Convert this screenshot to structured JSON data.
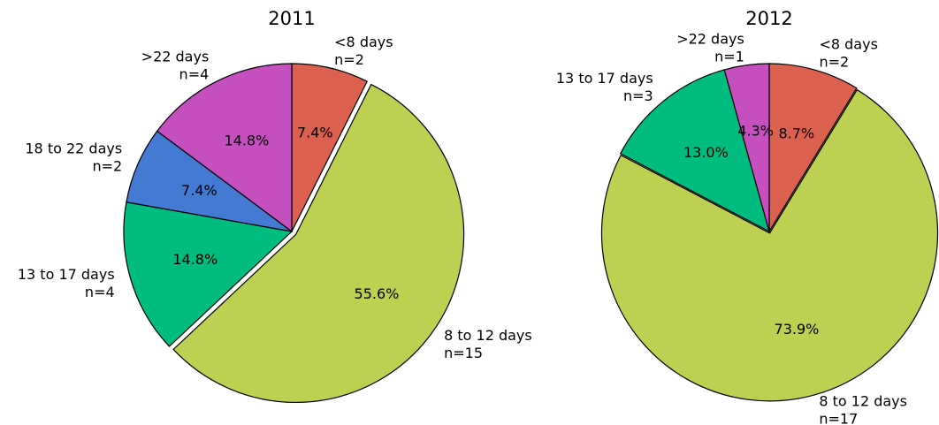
{
  "chart_data": [
    {
      "type": "pie",
      "title": "2011",
      "categories": [
        "<8 days",
        "8 to 12 days",
        "13 to 17 days",
        "18 to 22 days",
        ">22 days"
      ],
      "sublabels": [
        "n=2",
        "n=15",
        "n=4",
        "n=2",
        "n=4"
      ],
      "values": [
        7.4,
        55.6,
        14.8,
        7.4,
        14.8
      ],
      "value_labels": [
        "7.4%",
        "55.6%",
        "14.8%",
        "7.4%",
        "14.8%"
      ],
      "colors": [
        "#dc604f",
        "#bdd052",
        "#00bc7f",
        "#4479d4",
        "#c54fbf"
      ],
      "explode": [
        0,
        0.03,
        0,
        0,
        0
      ]
    },
    {
      "type": "pie",
      "title": "2012",
      "categories": [
        "<8 days",
        "8 to 12 days",
        "13 to 17 days",
        ">22 days"
      ],
      "sublabels": [
        "n=2",
        "n=17",
        "n=3",
        "n=1"
      ],
      "values": [
        8.7,
        73.9,
        13.0,
        4.3
      ],
      "value_labels": [
        "8.7%",
        "73.9%",
        "13.0%",
        "4.3%"
      ],
      "colors": [
        "#dc604f",
        "#bdd052",
        "#00bc7f",
        "#c54fbf"
      ],
      "explode": [
        0,
        0.01,
        0,
        0
      ]
    }
  ]
}
